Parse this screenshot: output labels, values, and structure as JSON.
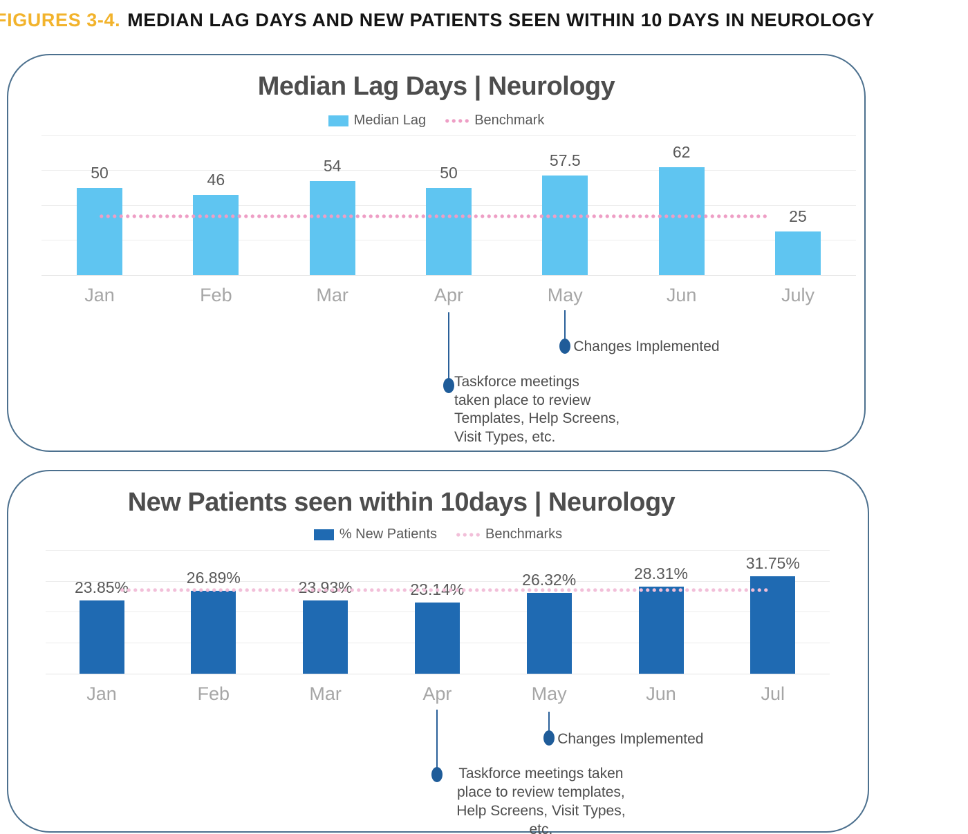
{
  "figure_heading": {
    "prefix": "FIGURES 3-4.",
    "title": "MEDIAN LAG DAYS AND NEW PATIENTS SEEN WITHIN 10 DAYS IN NEUROLOGY"
  },
  "colors": {
    "heading_accent": "#F2B32C",
    "heading_text": "#141414",
    "card_border": "#4C708E",
    "grid": "#ECECEC",
    "axis_label": "#A6A6A6",
    "value_label": "#595959",
    "annotation_text": "#4D4D4D",
    "annotation_marker": "#1F5C99"
  },
  "chart_data": [
    {
      "type": "bar",
      "title": "Median Lag Days | Neurology",
      "categories": [
        "Jan",
        "Feb",
        "Mar",
        "Apr",
        "May",
        "Jun",
        "July"
      ],
      "values": [
        50,
        46,
        54,
        50,
        57.5,
        62,
        25
      ],
      "value_labels": [
        "50",
        "46",
        "54",
        "50",
        "57.5",
        "62",
        "25"
      ],
      "bar_color": "#5FC5F1",
      "ylim": [
        0,
        80
      ],
      "grid_step": 20,
      "grid": true,
      "legend_position": "top",
      "legend": [
        {
          "label": "Median Lag",
          "type": "square",
          "color": "#5FC5F1"
        },
        {
          "label": "Benchmark",
          "type": "dots",
          "color": "#EE9EC5"
        }
      ],
      "benchmark": {
        "value": 34,
        "color": "#EE9EC5",
        "label_shown": ""
      },
      "annotations": [
        {
          "anchor": "Apr",
          "text_lines": [
            "Taskforce meetings",
            "taken place to review",
            "Templates, Help Screens,",
            "Visit Types, etc."
          ]
        },
        {
          "anchor": "May",
          "text_lines": [
            "Changes Implemented"
          ]
        }
      ]
    },
    {
      "type": "bar",
      "title": "New Patients seen within 10days | Neurology",
      "categories": [
        "Jan",
        "Feb",
        "Mar",
        "Apr",
        "May",
        "Jun",
        "Jul"
      ],
      "values": [
        23.85,
        26.89,
        23.93,
        23.14,
        26.32,
        28.31,
        31.75
      ],
      "value_labels": [
        "23.85%",
        "26.89%",
        "23.93%",
        "23.14%",
        "26.32%",
        "28.31%",
        "31.75%"
      ],
      "bar_color": "#1F6AB2",
      "ylim": [
        0,
        40
      ],
      "grid_step": 10,
      "grid": true,
      "legend_position": "top",
      "legend": [
        {
          "label": "% New Patients",
          "type": "square",
          "color": "#1F6AB2"
        },
        {
          "label": "Benchmarks",
          "type": "dots",
          "color": "#F2BFD9"
        }
      ],
      "benchmark": {
        "value": 27.2,
        "color": "#F2BFD9",
        "label_shown": ""
      },
      "annotations": [
        {
          "anchor": "Apr",
          "text_lines": [
            "Taskforce meetings taken",
            "place to review templates,",
            "Help Screens, Visit Types, etc."
          ]
        },
        {
          "anchor": "May",
          "text_lines": [
            "Changes Implemented"
          ]
        }
      ]
    }
  ]
}
